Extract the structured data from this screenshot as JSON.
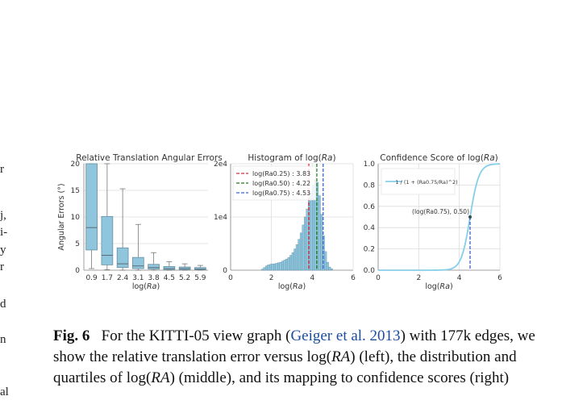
{
  "left_margin_fragments": [
    "r",
    "j,",
    "i-",
    "y",
    "r",
    "d",
    "n",
    "al"
  ],
  "caption": {
    "label": "Fig. 6",
    "text_before_cite": "For the KITTI-05 view graph (",
    "cite": "Geiger et al. 2013",
    "text_mid1": ") with 177k edges, we show the relative translation error versus log(",
    "ra1": "RA",
    "text_mid2": ") (left), the distribution and quartiles of log(",
    "ra2": "RA",
    "text_end": ") (middle), and its mapping to confidence scores (right)"
  },
  "chart_data": [
    {
      "type": "box",
      "title": "Relative Translation Angular Errors",
      "xlabel": "log(Ra)",
      "ylabel": "Angular Errors (°)",
      "ylim": [
        0,
        20
      ],
      "yticks": [
        0,
        5,
        10,
        15,
        20
      ],
      "categories": [
        "0.9",
        "1.7",
        "2.4",
        "3.1",
        "3.8",
        "4.5",
        "5.2",
        "5.9"
      ],
      "boxes": [
        {
          "q1": 3.8,
          "median": 8.0,
          "q3": 20.0,
          "whisker_low": 0.3,
          "whisker_high": 20.0
        },
        {
          "q1": 1.0,
          "median": 2.8,
          "q3": 10.1,
          "whisker_low": 0.1,
          "whisker_high": 20.0
        },
        {
          "q1": 0.5,
          "median": 1.2,
          "q3": 4.2,
          "whisker_low": 0.0,
          "whisker_high": 15.3
        },
        {
          "q1": 0.3,
          "median": 0.8,
          "q3": 2.4,
          "whisker_low": 0.0,
          "whisker_high": 8.6
        },
        {
          "q1": 0.2,
          "median": 0.5,
          "q3": 1.1,
          "whisker_low": 0.0,
          "whisker_high": 3.3
        },
        {
          "q1": 0.1,
          "median": 0.3,
          "q3": 0.7,
          "whisker_low": 0.0,
          "whisker_high": 1.6
        },
        {
          "q1": 0.1,
          "median": 0.3,
          "q3": 0.6,
          "whisker_low": 0.0,
          "whisker_high": 1.2
        },
        {
          "q1": 0.1,
          "median": 0.2,
          "q3": 0.5,
          "whisker_low": 0.0,
          "whisker_high": 0.9
        }
      ],
      "color": "#8fc6dd"
    },
    {
      "type": "bar",
      "title": "Histogram of log(Ra)",
      "xlabel": "log(Ra)",
      "xlim": [
        0,
        6
      ],
      "xticks": [
        0,
        2,
        4,
        6
      ],
      "ylim": [
        0,
        20000
      ],
      "yticks": [
        {
          "v": 0,
          "label": "0"
        },
        {
          "v": 10000,
          "label": "1e4"
        },
        {
          "v": 20000,
          "label": "2e4"
        }
      ],
      "bin_start": 1.5,
      "bin_width": 0.1,
      "values": [
        200,
        500,
        800,
        1000,
        1100,
        1200,
        1200,
        1300,
        1400,
        1500,
        1700,
        1900,
        2100,
        2400,
        2800,
        3300,
        4000,
        4800,
        5800,
        7000,
        8500,
        10000,
        11500,
        13000,
        14500,
        16000,
        17000,
        16500,
        14000,
        10500,
        6500,
        3500,
        1500,
        600,
        250
      ],
      "color": "#8fc6dd",
      "quartiles": [
        {
          "label": "log(Ra0.25) : 3.83",
          "value": 3.83,
          "color": "#d62d43"
        },
        {
          "label": "log(Ra0.50) : 4.22",
          "value": 4.22,
          "color": "#1f7a1f"
        },
        {
          "label": "log(Ra0.75) : 4.53",
          "value": 4.53,
          "color": "#3a63d6"
        }
      ]
    },
    {
      "type": "line",
      "title": "Confidence Score of log(Ra)",
      "xlabel": "log(Ra)",
      "xlim": [
        0,
        6
      ],
      "xticks": [
        0,
        2,
        4,
        6
      ],
      "ylim": [
        0,
        1
      ],
      "yticks": [
        0.0,
        0.2,
        0.4,
        0.6,
        0.8,
        1.0
      ],
      "series": [
        {
          "name": "1 / (1 + (Ra0.75/Ra)^2)",
          "center": 4.53,
          "steepness": 4.605
        }
      ],
      "annotation": {
        "label": "(log(Ra0.75), 0.50)",
        "x": 4.53,
        "y": 0.5
      },
      "color": "#87ceeb"
    }
  ]
}
